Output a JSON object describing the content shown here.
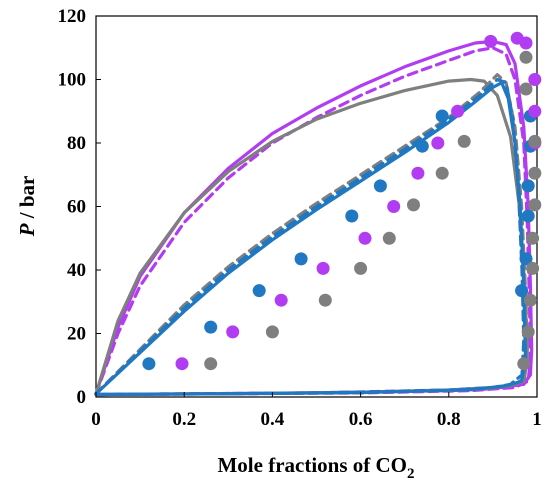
{
  "chart_data": {
    "type": "line",
    "xlabel": "Mole fractions of CO",
    "xlabel_subscript": "2",
    "ylabel_italic": "P",
    "ylabel_rest": " / bar",
    "xlim": [
      0,
      1
    ],
    "ylim": [
      0,
      120
    ],
    "xticks": [
      0,
      0.2,
      0.4,
      0.6,
      0.8,
      1
    ],
    "xtick_labels": [
      "0",
      "0.2",
      "0.4",
      "0.6",
      "0.8",
      "1"
    ],
    "yticks": [
      0,
      20,
      40,
      60,
      80,
      100,
      120
    ],
    "ytick_labels": [
      "0",
      "20",
      "40",
      "60",
      "80",
      "100",
      "120"
    ],
    "grid": false,
    "colors": {
      "blue": "#1f78c1",
      "purple": "#b23cf2",
      "gray": "#7f7f7f"
    },
    "series": [
      {
        "kind": "scatter",
        "color": "blue",
        "points": [
          [
            0.12,
            10.5
          ],
          [
            0.26,
            22
          ],
          [
            0.37,
            33.5
          ],
          [
            0.465,
            43.5
          ],
          [
            0.58,
            57
          ],
          [
            0.645,
            66.5
          ],
          [
            0.74,
            79
          ],
          [
            0.785,
            88.5
          ],
          [
            0.965,
            33.5
          ],
          [
            0.975,
            43.5
          ],
          [
            0.98,
            57
          ],
          [
            0.98,
            66.5
          ],
          [
            0.985,
            79
          ],
          [
            0.985,
            88.5
          ]
        ]
      },
      {
        "kind": "scatter",
        "color": "purple",
        "points": [
          [
            0.195,
            10.5
          ],
          [
            0.31,
            20.5
          ],
          [
            0.42,
            30.5
          ],
          [
            0.515,
            40.5
          ],
          [
            0.61,
            50
          ],
          [
            0.675,
            60
          ],
          [
            0.73,
            70.5
          ],
          [
            0.775,
            80
          ],
          [
            0.82,
            90
          ],
          [
            0.895,
            112
          ],
          [
            0.955,
            113
          ],
          [
            0.975,
            111.5
          ],
          [
            0.995,
            80
          ],
          [
            0.995,
            90
          ],
          [
            0.995,
            100
          ]
        ]
      },
      {
        "kind": "scatter",
        "color": "gray",
        "points": [
          [
            0.26,
            10.5
          ],
          [
            0.4,
            20.5
          ],
          [
            0.52,
            30.5
          ],
          [
            0.6,
            40.5
          ],
          [
            0.665,
            50
          ],
          [
            0.72,
            60.5
          ],
          [
            0.785,
            70.5
          ],
          [
            0.835,
            80.5
          ],
          [
            0.975,
            107
          ],
          [
            0.975,
            97
          ],
          [
            0.97,
            10.5
          ],
          [
            0.98,
            20.5
          ],
          [
            0.985,
            30.5
          ],
          [
            0.99,
            40.5
          ],
          [
            0.99,
            50
          ],
          [
            0.995,
            60.5
          ],
          [
            0.995,
            70.5
          ],
          [
            0.995,
            80.5
          ]
        ]
      },
      {
        "kind": "line",
        "dashed": false,
        "color": "purple",
        "points": [
          [
            0,
            1
          ],
          [
            0.05,
            22
          ],
          [
            0.1,
            38
          ],
          [
            0.2,
            58
          ],
          [
            0.3,
            72
          ],
          [
            0.4,
            83
          ],
          [
            0.5,
            91
          ],
          [
            0.6,
            98
          ],
          [
            0.7,
            104
          ],
          [
            0.8,
            109
          ],
          [
            0.86,
            111.5
          ],
          [
            0.9,
            112
          ],
          [
            0.93,
            111
          ],
          [
            0.95,
            105
          ],
          [
            0.97,
            85
          ],
          [
            0.98,
            60
          ],
          [
            0.985,
            35
          ],
          [
            0.988,
            15
          ],
          [
            0.985,
            7
          ],
          [
            0.97,
            4
          ],
          [
            0.9,
            2.6
          ],
          [
            0.8,
            2
          ],
          [
            0.6,
            1.5
          ],
          [
            0.4,
            1.2
          ],
          [
            0.2,
            1
          ],
          [
            0,
            0.8
          ]
        ]
      },
      {
        "kind": "line",
        "dashed": true,
        "color": "purple",
        "points": [
          [
            0,
            1
          ],
          [
            0.05,
            20
          ],
          [
            0.1,
            35
          ],
          [
            0.2,
            55
          ],
          [
            0.3,
            69
          ],
          [
            0.4,
            80
          ],
          [
            0.5,
            88
          ],
          [
            0.6,
            95
          ],
          [
            0.7,
            101
          ],
          [
            0.8,
            106
          ],
          [
            0.86,
            109
          ],
          [
            0.9,
            110
          ],
          [
            0.93,
            108
          ],
          [
            0.95,
            100
          ],
          [
            0.97,
            80
          ],
          [
            0.978,
            55
          ],
          [
            0.983,
            30
          ],
          [
            0.985,
            12
          ],
          [
            0.98,
            5
          ],
          [
            0.95,
            3
          ],
          [
            0.85,
            2
          ],
          [
            0.6,
            1.3
          ],
          [
            0.3,
            1
          ],
          [
            0,
            0.8
          ]
        ]
      },
      {
        "kind": "line",
        "dashed": false,
        "color": "gray",
        "points": [
          [
            0,
            1
          ],
          [
            0.05,
            24
          ],
          [
            0.1,
            39
          ],
          [
            0.2,
            58
          ],
          [
            0.3,
            71
          ],
          [
            0.4,
            80.5
          ],
          [
            0.5,
            87.5
          ],
          [
            0.6,
            92.5
          ],
          [
            0.7,
            96.5
          ],
          [
            0.8,
            99.5
          ],
          [
            0.85,
            100
          ],
          [
            0.88,
            99.5
          ],
          [
            0.91,
            95
          ],
          [
            0.94,
            82
          ],
          [
            0.96,
            60
          ],
          [
            0.972,
            35
          ],
          [
            0.978,
            15
          ],
          [
            0.972,
            6
          ],
          [
            0.95,
            4
          ],
          [
            0.9,
            3
          ],
          [
            0.8,
            2.2
          ],
          [
            0.6,
            1.5
          ],
          [
            0.3,
            1
          ],
          [
            0,
            0.8
          ]
        ]
      },
      {
        "kind": "line",
        "dashed": true,
        "color": "gray",
        "points": [
          [
            0,
            1
          ],
          [
            0.1,
            15
          ],
          [
            0.2,
            29
          ],
          [
            0.3,
            41
          ],
          [
            0.4,
            51.5
          ],
          [
            0.5,
            61
          ],
          [
            0.6,
            70
          ],
          [
            0.7,
            79
          ],
          [
            0.8,
            88
          ],
          [
            0.87,
            96
          ],
          [
            0.91,
            101.5
          ],
          [
            0.93,
            99
          ],
          [
            0.95,
            85
          ],
          [
            0.965,
            60
          ],
          [
            0.975,
            30
          ],
          [
            0.978,
            12
          ],
          [
            0.97,
            5
          ],
          [
            0.94,
            3.5
          ],
          [
            0.9,
            2.8
          ],
          [
            0.8,
            2
          ],
          [
            0.5,
            1.3
          ],
          [
            0,
            0.8
          ]
        ]
      },
      {
        "kind": "line",
        "dashed": false,
        "color": "blue",
        "points": [
          [
            0,
            1
          ],
          [
            0.1,
            14
          ],
          [
            0.2,
            27
          ],
          [
            0.3,
            39
          ],
          [
            0.4,
            49.5
          ],
          [
            0.5,
            59
          ],
          [
            0.6,
            68
          ],
          [
            0.7,
            77
          ],
          [
            0.8,
            86.5
          ],
          [
            0.86,
            93
          ],
          [
            0.9,
            97.5
          ],
          [
            0.92,
            99
          ],
          [
            0.935,
            94
          ],
          [
            0.95,
            80
          ],
          [
            0.962,
            60
          ],
          [
            0.97,
            35
          ],
          [
            0.974,
            12
          ],
          [
            0.965,
            5
          ],
          [
            0.93,
            3.5
          ],
          [
            0.85,
            2.3
          ],
          [
            0.6,
            1.4
          ],
          [
            0.3,
            1
          ],
          [
            0,
            0.8
          ]
        ]
      },
      {
        "kind": "line",
        "dashed": true,
        "color": "blue",
        "points": [
          [
            0,
            1
          ],
          [
            0.1,
            14.5
          ],
          [
            0.2,
            28
          ],
          [
            0.3,
            40
          ],
          [
            0.4,
            50.5
          ],
          [
            0.5,
            60
          ],
          [
            0.6,
            69
          ],
          [
            0.7,
            78
          ],
          [
            0.8,
            87.5
          ],
          [
            0.87,
            95
          ],
          [
            0.91,
            100
          ],
          [
            0.93,
            99
          ],
          [
            0.945,
            88
          ],
          [
            0.958,
            65
          ],
          [
            0.966,
            40
          ],
          [
            0.97,
            18
          ],
          [
            0.966,
            7
          ],
          [
            0.94,
            4
          ],
          [
            0.9,
            3
          ],
          [
            0.8,
            2.2
          ],
          [
            0.5,
            1.3
          ],
          [
            0,
            0.8
          ]
        ]
      }
    ]
  }
}
